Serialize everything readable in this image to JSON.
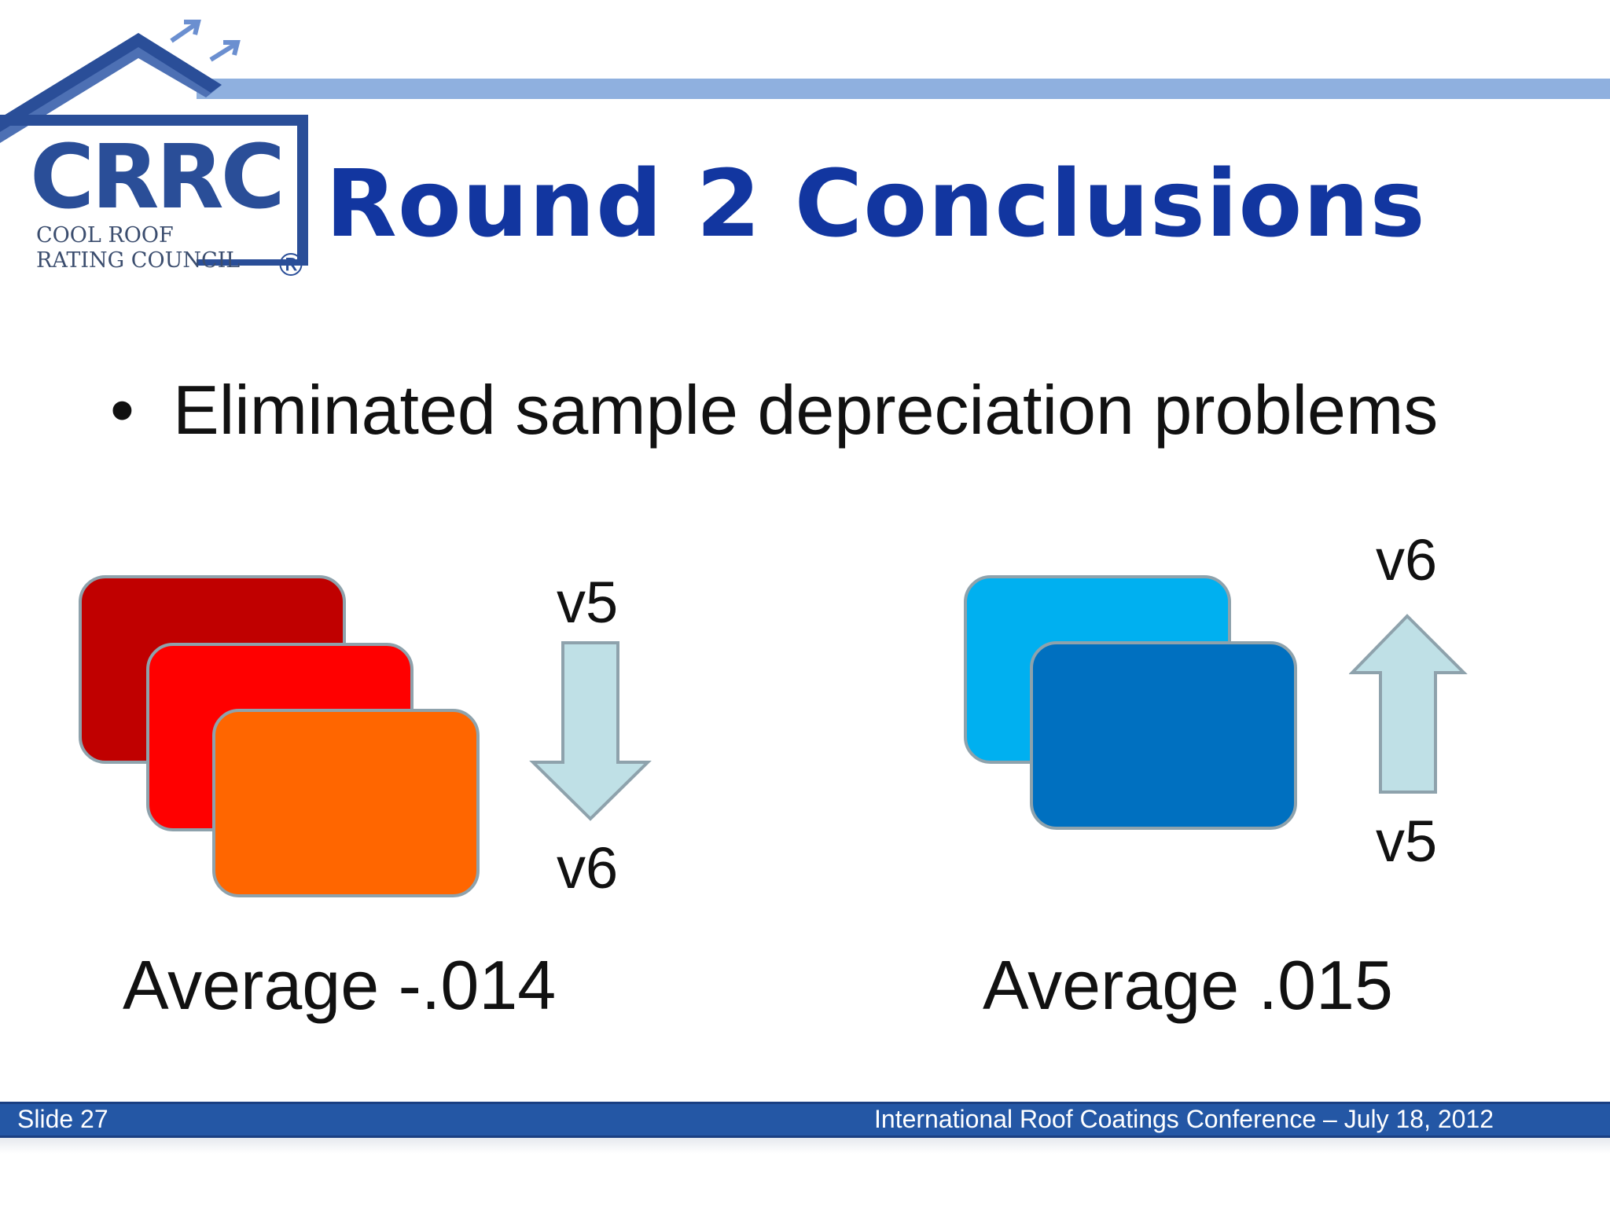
{
  "logo": {
    "mark": "CRRC",
    "line1": "COOL ROOF",
    "line2": "RATING COUNCIL",
    "registered": "®"
  },
  "title": "Round 2 Conclusions",
  "bullet": {
    "glyph": "•",
    "text": "Eliminated sample depreciation problems"
  },
  "left_group": {
    "label_top": "v5",
    "label_bottom": "v6",
    "average": "Average -.014",
    "card_colors": [
      "#c00000",
      "#ff0000",
      "#ff6600"
    ],
    "arrow_direction": "down"
  },
  "right_group": {
    "label_top": "v6",
    "label_bottom": "v5",
    "average": "Average .015",
    "card_colors": [
      "#00b0f0",
      "#0070c0"
    ],
    "arrow_direction": "up"
  },
  "footer": {
    "slide": "Slide 27",
    "event": "International Roof Coatings Conference – July 18, 2012"
  },
  "colors": {
    "title": "#1236a0",
    "footer_bar": "#2457a5",
    "arrow_fill": "#bfe0e6"
  }
}
